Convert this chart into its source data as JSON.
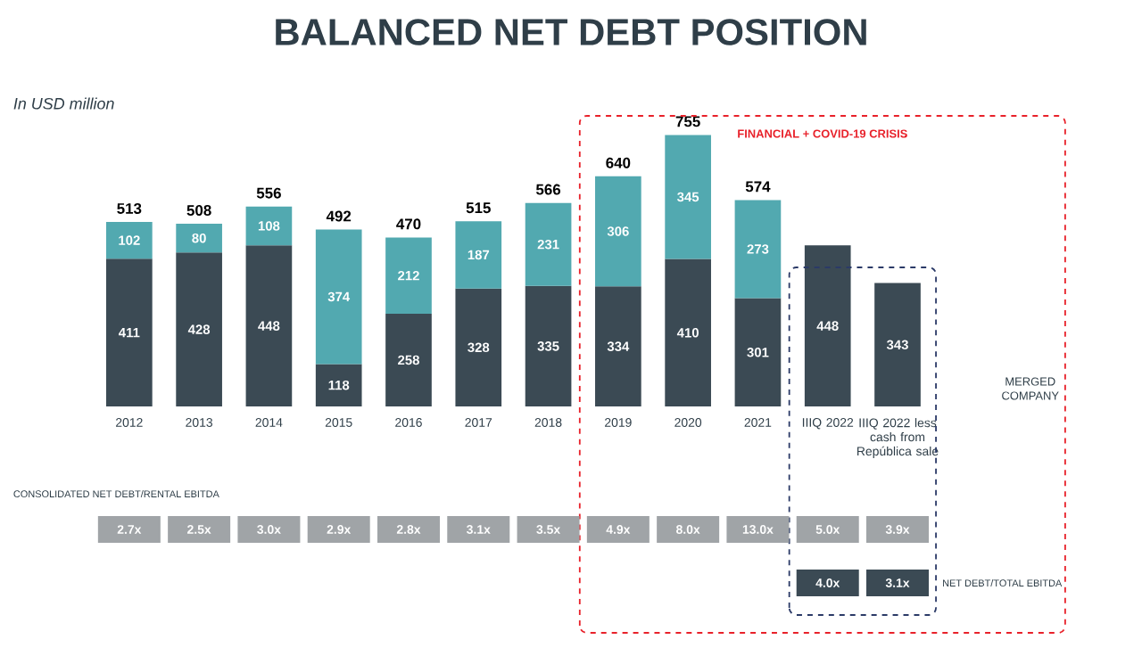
{
  "chart_data": {
    "type": "bar",
    "title": "BALANCED NET DEBT POSITION",
    "stacked": true,
    "data_labels": true,
    "categories": [
      "2012",
      "2013",
      "2014",
      "2015",
      "2016",
      "2017",
      "2018",
      "2019",
      "2020",
      "2021",
      "IIIQ 2022",
      "IIIQ 2022 less cash from República sale"
    ],
    "series": [
      {
        "color": "#3b4a54",
        "values": [
          411,
          428,
          448,
          118,
          258,
          328,
          335,
          334,
          410,
          301,
          448,
          343
        ]
      },
      {
        "color": "#52a9b0",
        "values": [
          102,
          80,
          108,
          374,
          212,
          187,
          231,
          306,
          345,
          273,
          null,
          null
        ]
      }
    ],
    "totals": [
      "513",
      "508",
      "556",
      "492",
      "470",
      "515",
      "566",
      "640",
      "755",
      "574",
      null,
      null
    ],
    "annotations": [
      "In USD million",
      "CONSOLIDATED NET DEBT/RENTAL EBITDA",
      "NET DEBT/TOTAL EBITDA",
      "MERGED COMPANY",
      "FINANCIAL + COVID-19 CRISIS",
      "2.7x",
      "2.5x",
      "3.0x",
      "2.9x",
      "2.8x",
      "3.1x",
      "3.5x",
      "4.9x",
      "8.0x",
      "13.0x",
      "5.0x",
      "3.9x",
      "4.0x",
      "3.1x"
    ]
  }
}
